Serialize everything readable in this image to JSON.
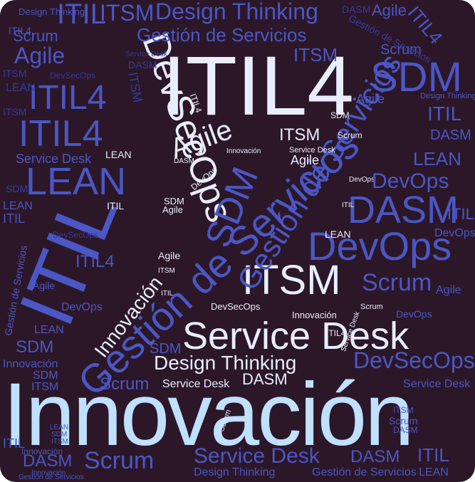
{
  "words": {
    "innovacion": "Innovación",
    "itil4": "ITIL4",
    "itil": "ITIL",
    "sdm": "SDM",
    "devsecops": "DevSecOps",
    "gestion_servicios": "Gestión de Servicios",
    "service_desk": "Service Desk",
    "itsm": "ITSM",
    "devops": "DevOps",
    "scrum": "Scrum",
    "dasm": "DASM",
    "lean": "LEAN",
    "agile": "Agile",
    "design_thinking": "Design Thinking"
  },
  "colors": {
    "background": "#2c1728",
    "dominant_light": "#bfe0ff",
    "white": "#e8eeff",
    "blue": "#3d47ad"
  }
}
